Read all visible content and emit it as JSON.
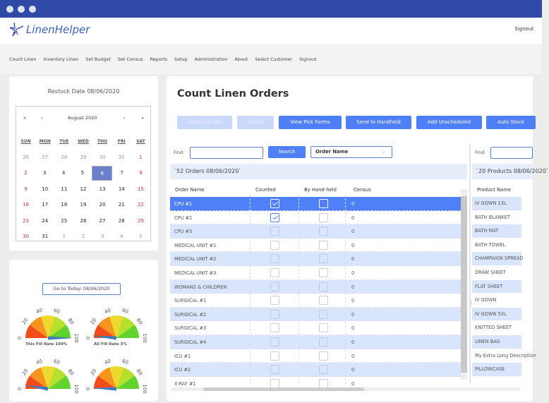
{
  "app": {
    "name": "LinenHelper",
    "signout": "Signout"
  },
  "nav": [
    "Count Linen",
    "Inventory Linen",
    "Set Budget",
    "Set Census",
    "Reports",
    "Setup",
    "Administration",
    "About",
    "Select Customer",
    "Signout"
  ],
  "calendar": {
    "restock_label": "Restock Date 08/06/2020",
    "month": "August 2020",
    "first": "«",
    "prev": "‹",
    "next": "›",
    "last": "»",
    "dow": [
      "SUN",
      "MON",
      "TUE",
      "WED",
      "THU",
      "FRI",
      "SAT"
    ],
    "weeks": [
      [
        "26",
        "27",
        "28",
        "29",
        "30",
        "31",
        "1"
      ],
      [
        "2",
        "3",
        "4",
        "5",
        "6",
        "7",
        "8"
      ],
      [
        "9",
        "10",
        "11",
        "12",
        "13",
        "14",
        "15"
      ],
      [
        "16",
        "17",
        "18",
        "19",
        "20",
        "21",
        "22"
      ],
      [
        "23",
        "24",
        "25",
        "26",
        "27",
        "28",
        "29"
      ],
      [
        "30",
        "31",
        "1",
        "2",
        "3",
        "4",
        "5"
      ]
    ],
    "selected": "6"
  },
  "gauges": {
    "today_button": "Go to Today: 08/06/2020",
    "ticks": [
      "0",
      "20",
      "40",
      "60",
      "80",
      "100"
    ],
    "items": [
      {
        "label": "This Fill Rate 100%",
        "value": 100
      },
      {
        "label": "All Fill Rate 3%",
        "value": 3
      },
      {
        "label": "",
        "value": 5
      },
      {
        "label": "",
        "value": 1
      }
    ],
    "colors": [
      "#f44b1c",
      "#f7941d",
      "#ecd92b",
      "#b5e02c",
      "#62d22d"
    ],
    "needle": "#3e7bbd"
  },
  "main": {
    "title": "Count Linen Orders",
    "buttons": [
      {
        "label": "Save Changes",
        "disabled": true
      },
      {
        "label": "Cancel",
        "disabled": true
      },
      {
        "label": "View Pick Forms"
      },
      {
        "label": "Send to Handheld"
      },
      {
        "label": "Add Unscheduled"
      },
      {
        "label": "Auto Stock"
      }
    ],
    "find_label": "Find",
    "search_label": "Search",
    "search_value": "",
    "sort_select": "Order Name",
    "orders_caption": "`52 Orders 08/06/2020`",
    "columns": [
      "Order Name",
      "Counted",
      "By Hand-held",
      "Census"
    ],
    "orders": [
      {
        "name": "CPU #1",
        "counted": true,
        "handheld": false,
        "census": "0"
      },
      {
        "name": "CPU #2",
        "counted": true,
        "handheld": false,
        "census": "0"
      },
      {
        "name": "CPU #3",
        "counted": false,
        "handheld": false,
        "census": "0"
      },
      {
        "name": "MEDICAL UNIT #1",
        "counted": false,
        "handheld": false,
        "census": "0"
      },
      {
        "name": "MEDICAL UNIT #2",
        "counted": false,
        "handheld": false,
        "census": "0"
      },
      {
        "name": "MEDICAL UNIT #3",
        "counted": false,
        "handheld": false,
        "census": "0"
      },
      {
        "name": "WOMANS & CHILDREN",
        "counted": false,
        "handheld": false,
        "census": "0"
      },
      {
        "name": "SURGICAL #1",
        "counted": false,
        "handheld": false,
        "census": "0"
      },
      {
        "name": "SURGICAL #2",
        "counted": false,
        "handheld": false,
        "census": "0"
      },
      {
        "name": "SURGICAL #3",
        "counted": false,
        "handheld": false,
        "census": "0"
      },
      {
        "name": "SURGICAL #4",
        "counted": false,
        "handheld": false,
        "census": "0"
      },
      {
        "name": "ICU #1",
        "counted": false,
        "handheld": false,
        "census": "0"
      },
      {
        "name": "ICU #2",
        "counted": false,
        "handheld": false,
        "census": "0"
      },
      {
        "name": "X-RAY #1",
        "counted": false,
        "handheld": false,
        "census": "0"
      }
    ],
    "products_caption": "`20 Products 08/06/2020`",
    "products_column": "Product Name",
    "products": [
      "IV GOWN 1XL",
      "BATH BLANKET",
      "BATH MAT",
      "BATH TOWEL",
      "CHAMPAIGN SPREAD",
      "DRAW SHEET",
      "FLAT SHEET",
      "IV GOWN",
      "IV GOWN 5XL",
      "KNITTED SHEET",
      "LINEN BAG",
      "My Extra Long Description",
      "PILLOWCASE"
    ]
  }
}
